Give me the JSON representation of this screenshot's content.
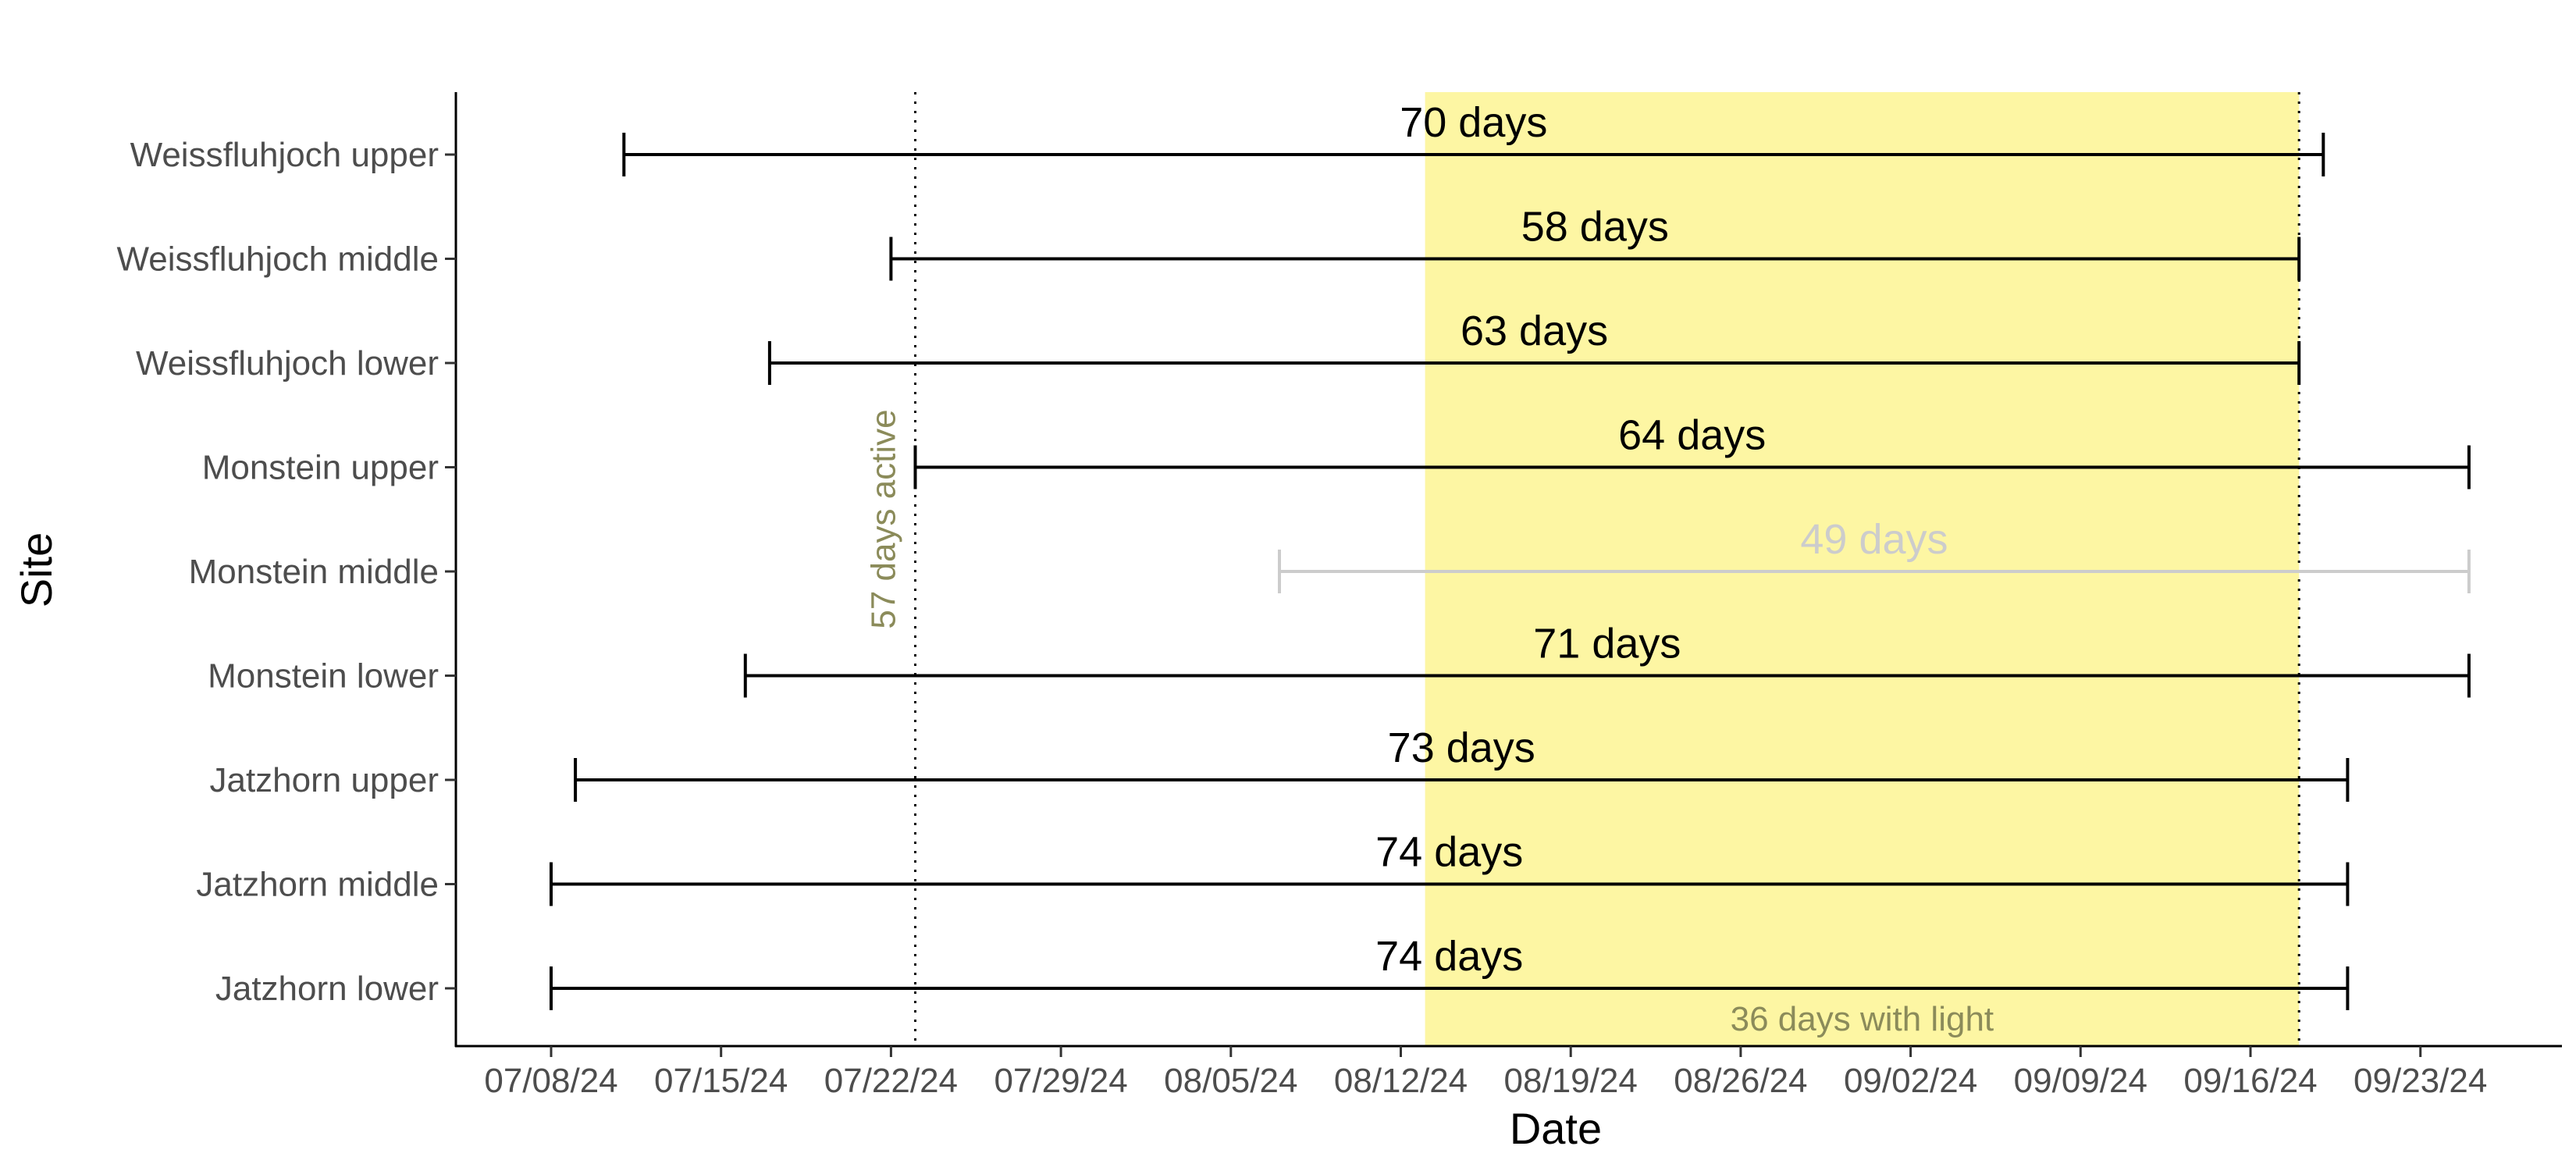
{
  "chart_data": {
    "type": "range",
    "xlabel": "Date",
    "ylabel": "Site",
    "x_ticks": [
      "07/08/24",
      "07/15/24",
      "07/22/24",
      "07/29/24",
      "08/05/24",
      "08/12/24",
      "08/19/24",
      "08/26/24",
      "09/02/24",
      "09/09/24",
      "09/16/24",
      "09/23/24"
    ],
    "xlim": [
      "2024-07-04",
      "2024-10-03"
    ],
    "grid": false,
    "highlight": {
      "start": "2024-08-13",
      "end": "2024-09-18",
      "label": "36 days with light",
      "color": "#fdf6a3"
    },
    "reference_line": {
      "date": "2024-07-23",
      "label": "57 days active"
    },
    "categories": [
      "Weissfluhjoch upper",
      "Weissfluhjoch middle",
      "Weissfluhjoch lower",
      "Monstein upper",
      "Monstein middle",
      "Monstein lower",
      "Jatzhorn upper",
      "Jatzhorn middle",
      "Jatzhorn lower"
    ],
    "ranges": [
      {
        "site": "Weissfluhjoch upper",
        "start": "2024-07-11",
        "end": "2024-09-19",
        "label": "70 days",
        "color": "#000000"
      },
      {
        "site": "Weissfluhjoch middle",
        "start": "2024-07-22",
        "end": "2024-09-18",
        "label": "58 days",
        "color": "#000000"
      },
      {
        "site": "Weissfluhjoch lower",
        "start": "2024-07-17",
        "end": "2024-09-18",
        "label": "63 days",
        "color": "#000000"
      },
      {
        "site": "Monstein upper",
        "start": "2024-07-23",
        "end": "2024-09-25",
        "label": "64 days",
        "color": "#000000"
      },
      {
        "site": "Monstein middle",
        "start": "2024-08-07",
        "end": "2024-09-25",
        "label": "49 days",
        "color": "#cccccc"
      },
      {
        "site": "Monstein lower",
        "start": "2024-07-16",
        "end": "2024-09-25",
        "label": "71 days",
        "color": "#000000"
      },
      {
        "site": "Jatzhorn upper",
        "start": "2024-07-09",
        "end": "2024-09-20",
        "label": "73 days",
        "color": "#000000"
      },
      {
        "site": "Jatzhorn middle",
        "start": "2024-07-08",
        "end": "2024-09-20",
        "label": "74 days",
        "color": "#000000"
      },
      {
        "site": "Jatzhorn lower",
        "start": "2024-07-08",
        "end": "2024-09-20",
        "label": "74 days",
        "color": "#000000"
      }
    ]
  }
}
